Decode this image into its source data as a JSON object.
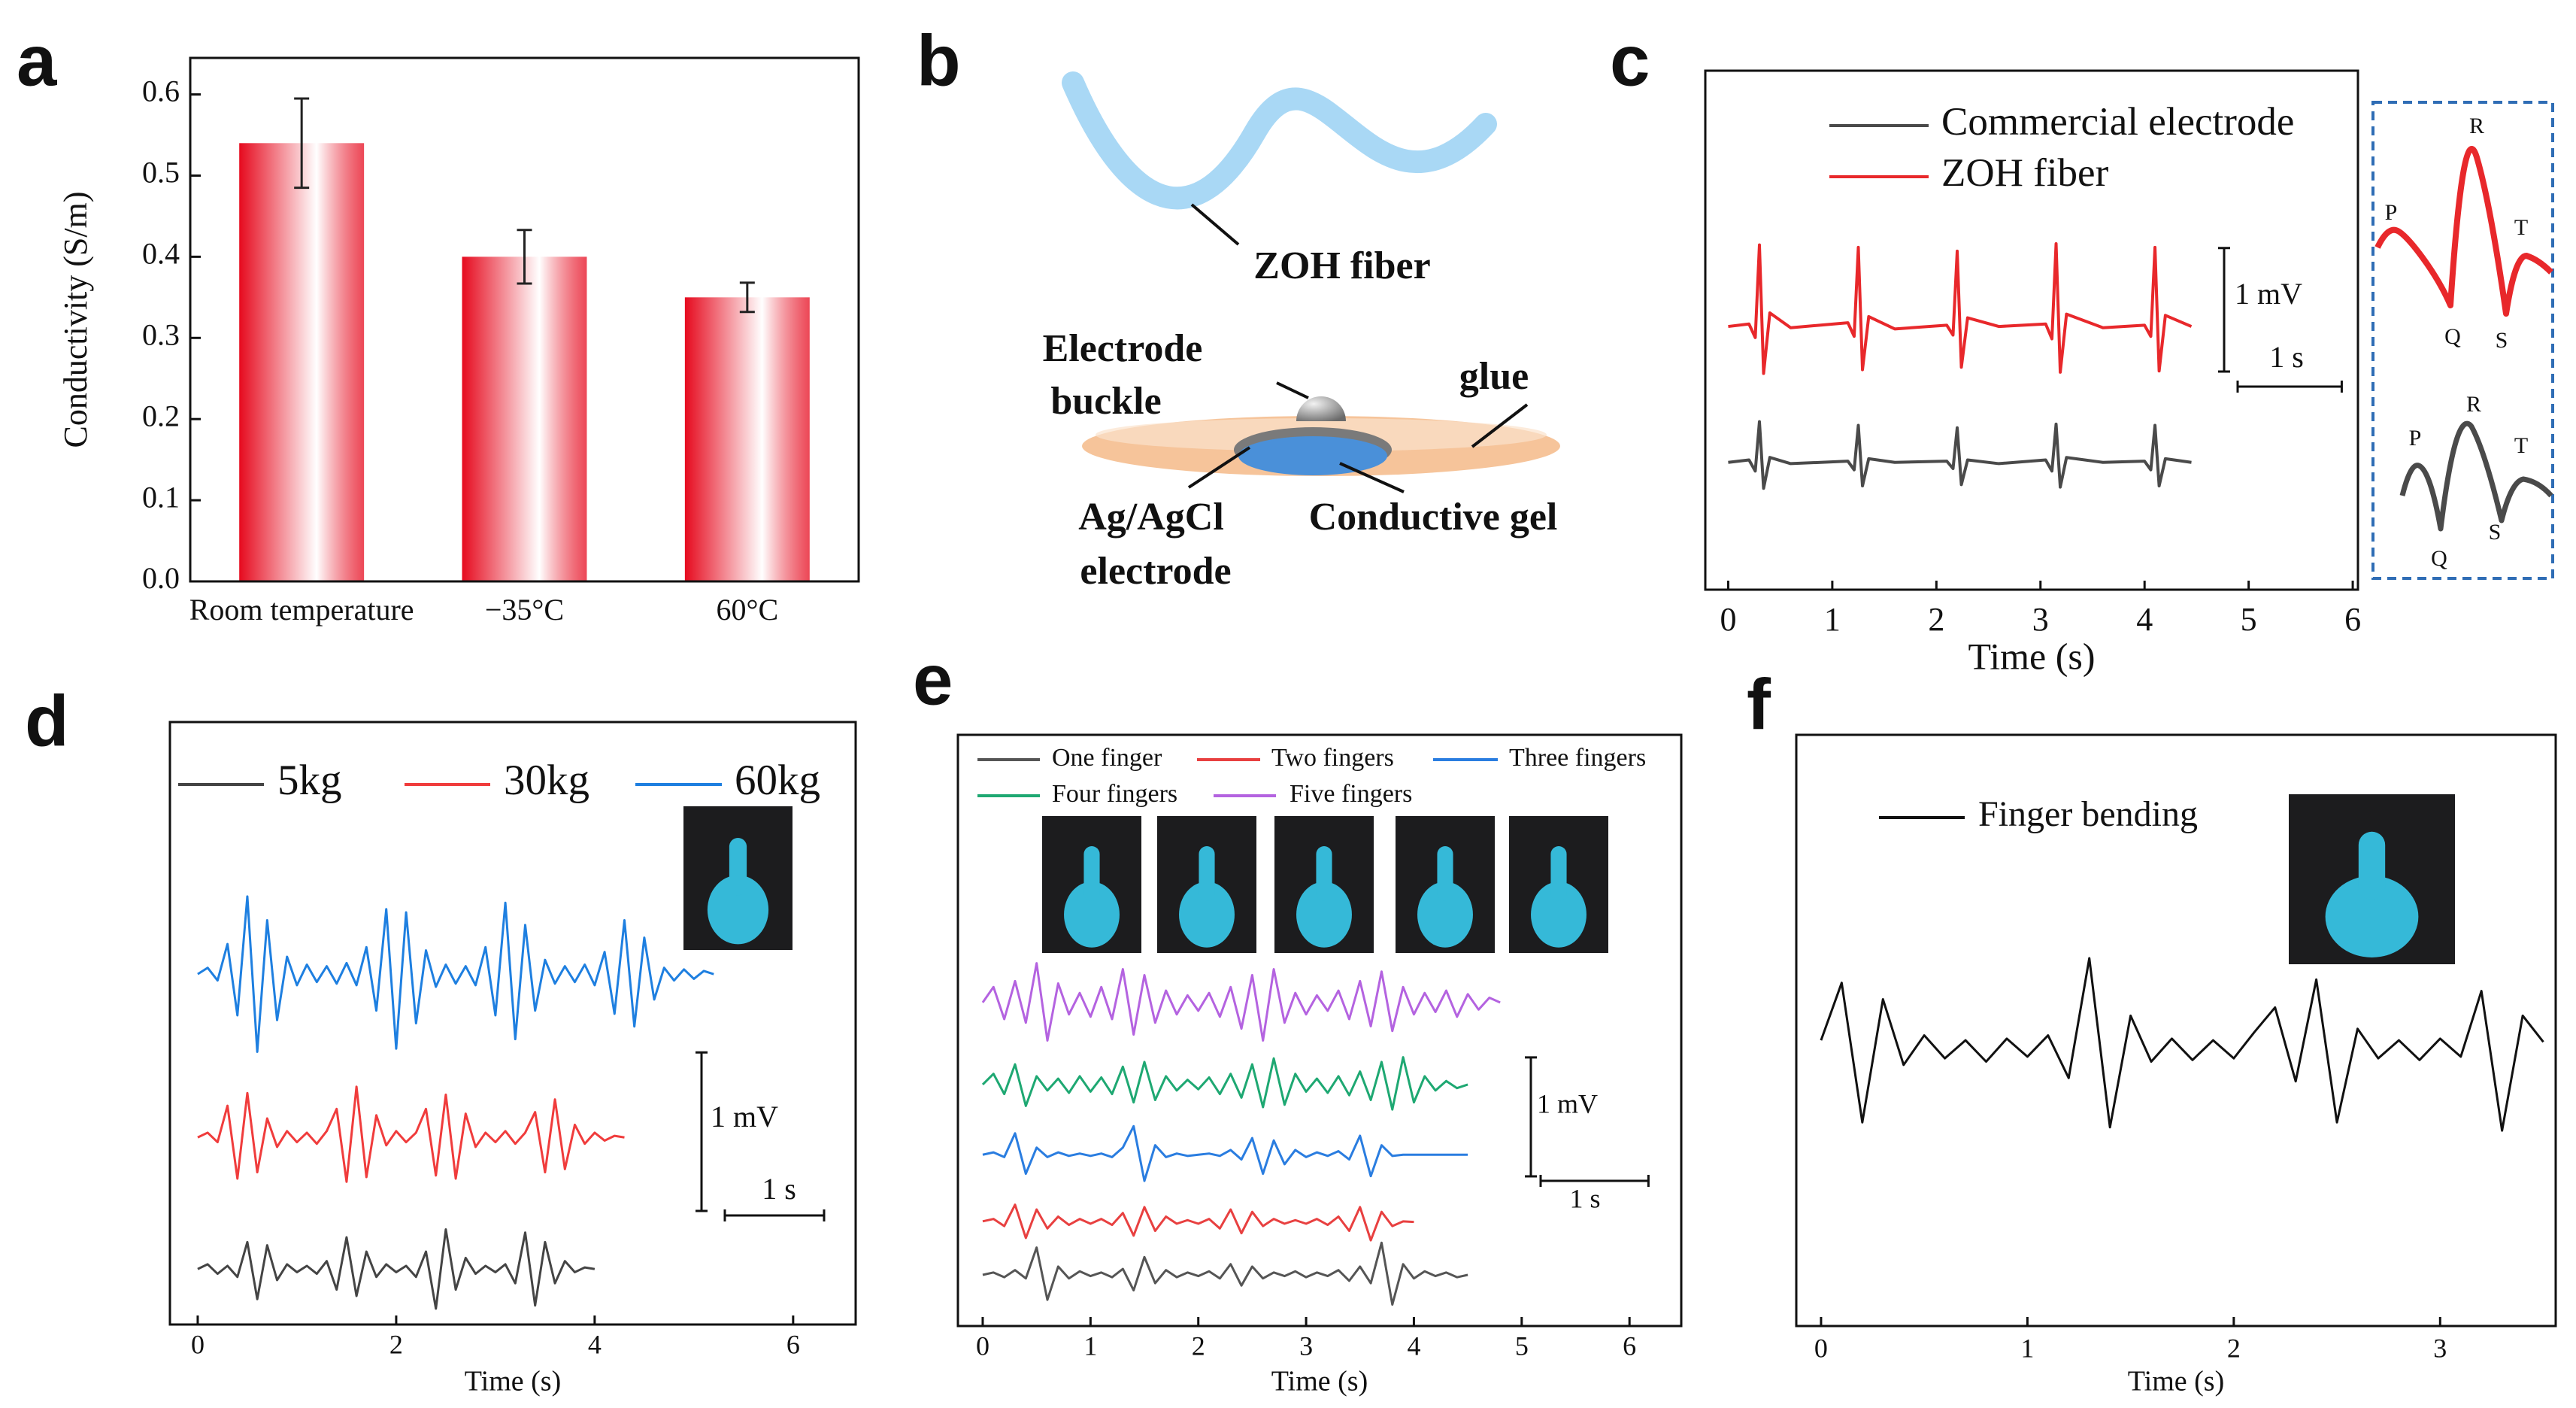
{
  "chart_data": [
    {
      "panel": "a",
      "type": "bar",
      "ylabel": "Conductivity (S/m)",
      "categories": [
        "Room temperature",
        "−35°C",
        "60°C"
      ],
      "values": [
        0.54,
        0.4,
        0.35
      ],
      "errors": [
        0.055,
        0.033,
        0.018
      ],
      "color": "#e60a1e",
      "ylim": [
        0,
        0.645
      ],
      "yticks": [
        {
          "value": 0,
          "label": "0.0"
        },
        0.1,
        0.2,
        0.3,
        0.4,
        0.5,
        0.6
      ]
    },
    {
      "panel": "c",
      "type": "line",
      "xlabel": "Time (s)",
      "x": [
        0,
        0.2,
        0.26,
        0.3,
        0.34,
        0.4,
        0.6,
        1.15,
        1.21,
        1.25,
        1.29,
        1.35,
        1.6,
        2.1,
        2.16,
        2.2,
        2.24,
        2.3,
        2.6,
        3.05,
        3.11,
        3.15,
        3.19,
        3.25,
        3.6,
        4.0,
        4.06,
        4.1,
        4.14,
        4.2,
        4.45
      ],
      "xlim": [
        -0.22,
        6.05
      ],
      "xticks": [
        0,
        1,
        2,
        3,
        4,
        5,
        6
      ],
      "ylim": [
        0,
        4.2
      ],
      "series": [
        {
          "name": "Commercial electrode",
          "color": "#4a4a4a",
          "values": [
            1.03,
            1.05,
            0.96,
            1.36,
            0.82,
            1.07,
            1.02,
            1.04,
            0.97,
            1.33,
            0.84,
            1.06,
            1.03,
            1.04,
            0.98,
            1.31,
            0.85,
            1.05,
            1.02,
            1.05,
            0.96,
            1.34,
            0.83,
            1.07,
            1.03,
            1.04,
            0.97,
            1.33,
            0.84,
            1.06,
            1.03
          ]
        },
        {
          "name": "ZOH fiber",
          "color": "#e8282b",
          "values": [
            2.13,
            2.15,
            2.04,
            2.79,
            1.75,
            2.24,
            2.12,
            2.16,
            2.05,
            2.77,
            1.78,
            2.21,
            2.11,
            2.14,
            2.06,
            2.74,
            1.8,
            2.2,
            2.13,
            2.15,
            2.03,
            2.8,
            1.76,
            2.23,
            2.12,
            2.14,
            2.05,
            2.77,
            1.77,
            2.22,
            2.13
          ]
        }
      ],
      "scale_bar": {
        "y_value": 1,
        "y_label": "1 mV",
        "x_value": 1,
        "x_label": "1 s"
      },
      "inset": {
        "labels": [
          "P",
          "Q",
          "R",
          "S",
          "T"
        ]
      }
    },
    {
      "panel": "d",
      "type": "line",
      "xlabel": "Time (s)",
      "x": [
        0,
        0.1,
        0.2,
        0.3,
        0.4,
        0.5,
        0.6,
        0.7,
        0.8,
        0.9,
        1.0,
        1.1,
        1.2,
        1.3,
        1.4,
        1.5,
        1.6,
        1.7,
        1.8,
        1.9,
        2.0,
        2.1,
        2.2,
        2.3,
        2.4,
        2.5,
        2.6,
        2.7,
        2.8,
        2.9,
        3.0,
        3.1,
        3.2,
        3.3,
        3.4,
        3.5,
        3.6,
        3.7,
        3.8,
        3.9,
        4.0,
        4.1,
        4.2,
        4.3,
        4.4,
        4.5,
        4.6,
        4.7,
        4.8,
        4.9,
        5.0,
        5.1,
        5.2
      ],
      "xlim": [
        -0.28,
        6.63
      ],
      "xticks": [
        0,
        2,
        4,
        6
      ],
      "ylim": [
        0,
        3.8
      ],
      "series": [
        {
          "name": "5kg",
          "color": "#444444",
          "values": [
            0.35,
            0.38,
            0.32,
            0.37,
            0.3,
            0.52,
            0.16,
            0.5,
            0.28,
            0.38,
            0.33,
            0.37,
            0.32,
            0.4,
            0.22,
            0.55,
            0.18,
            0.46,
            0.3,
            0.38,
            0.33,
            0.37,
            0.3,
            0.46,
            0.1,
            0.6,
            0.22,
            0.42,
            0.32,
            0.37,
            0.33,
            0.38,
            0.26,
            0.58,
            0.12,
            0.52,
            0.26,
            0.4,
            0.33,
            0.36,
            0.35,
            null,
            null,
            null,
            null,
            null,
            null,
            null,
            null,
            null,
            null,
            null,
            null
          ]
        },
        {
          "name": "30kg",
          "color": "#f03c3c",
          "values": [
            1.18,
            1.21,
            1.15,
            1.38,
            0.92,
            1.46,
            0.96,
            1.3,
            1.12,
            1.22,
            1.15,
            1.21,
            1.14,
            1.22,
            1.36,
            0.9,
            1.5,
            0.93,
            1.32,
            1.13,
            1.22,
            1.15,
            1.21,
            1.36,
            0.94,
            1.45,
            0.92,
            1.33,
            1.12,
            1.21,
            1.15,
            1.22,
            1.14,
            1.21,
            1.34,
            0.96,
            1.42,
            0.98,
            1.26,
            1.14,
            1.21,
            1.16,
            1.19,
            1.18,
            null,
            null,
            null,
            null,
            null,
            null,
            null,
            null,
            null
          ]
        },
        {
          "name": "60kg",
          "color": "#1e7fe0",
          "values": [
            2.21,
            2.25,
            2.17,
            2.4,
            1.95,
            2.7,
            1.72,
            2.55,
            1.92,
            2.32,
            2.14,
            2.27,
            2.16,
            2.26,
            2.15,
            2.28,
            2.14,
            2.38,
            1.98,
            2.62,
            1.74,
            2.6,
            1.9,
            2.36,
            2.13,
            2.27,
            2.15,
            2.26,
            2.14,
            2.38,
            1.95,
            2.66,
            1.8,
            2.52,
            1.98,
            2.3,
            2.15,
            2.26,
            2.16,
            2.27,
            2.14,
            2.35,
            1.96,
            2.55,
            1.88,
            2.44,
            2.05,
            2.25,
            2.17,
            2.24,
            2.18,
            2.23,
            2.21
          ]
        }
      ],
      "scale_bar": {
        "y_value": 1,
        "y_label": "1 mV",
        "x_value": 1,
        "x_label": "1 s"
      }
    },
    {
      "panel": "e",
      "type": "line",
      "xlabel": "Time (s)",
      "x": [
        0,
        0.1,
        0.2,
        0.3,
        0.4,
        0.5,
        0.6,
        0.7,
        0.8,
        0.9,
        1.0,
        1.1,
        1.2,
        1.3,
        1.4,
        1.5,
        1.6,
        1.7,
        1.8,
        1.9,
        2.0,
        2.1,
        2.2,
        2.3,
        2.4,
        2.5,
        2.6,
        2.7,
        2.8,
        2.9,
        3.0,
        3.1,
        3.2,
        3.3,
        3.4,
        3.5,
        3.6,
        3.7,
        3.8,
        3.9,
        4.0,
        4.1,
        4.2,
        4.3,
        4.4,
        4.5,
        4.6,
        4.7,
        4.8
      ],
      "xlim": [
        -0.23,
        6.48
      ],
      "xticks": [
        0,
        1,
        2,
        3,
        4,
        5,
        6
      ],
      "ylim": [
        0,
        4.97
      ],
      "series": [
        {
          "name": "One finger",
          "color": "#555555",
          "values": [
            0.43,
            0.45,
            0.41,
            0.47,
            0.4,
            0.66,
            0.22,
            0.5,
            0.4,
            0.46,
            0.42,
            0.45,
            0.41,
            0.48,
            0.3,
            0.58,
            0.36,
            0.47,
            0.41,
            0.45,
            0.42,
            0.46,
            0.4,
            0.52,
            0.34,
            0.5,
            0.4,
            0.45,
            0.42,
            0.46,
            0.41,
            0.45,
            0.42,
            0.47,
            0.38,
            0.5,
            0.36,
            0.7,
            0.18,
            0.52,
            0.4,
            0.46,
            0.42,
            0.45,
            0.41,
            0.43,
            null,
            null,
            null
          ]
        },
        {
          "name": "Two fingers",
          "color": "#e84040",
          "values": [
            0.88,
            0.9,
            0.84,
            1.02,
            0.74,
            0.98,
            0.82,
            0.92,
            0.85,
            0.9,
            0.86,
            0.9,
            0.85,
            0.95,
            0.76,
            1.0,
            0.8,
            0.92,
            0.86,
            0.89,
            0.86,
            0.9,
            0.82,
            0.98,
            0.78,
            0.96,
            0.84,
            0.9,
            0.86,
            0.89,
            0.86,
            0.9,
            0.85,
            0.92,
            0.8,
            1.0,
            0.72,
            0.96,
            0.84,
            0.88,
            0.875,
            null,
            null,
            null,
            null,
            null,
            null,
            null,
            null
          ]
        },
        {
          "name": "Three fingers",
          "color": "#2a7de0",
          "values": [
            1.44,
            1.46,
            1.42,
            1.62,
            1.28,
            1.5,
            1.42,
            1.46,
            1.43,
            1.45,
            1.43,
            1.45,
            1.42,
            1.5,
            1.68,
            1.22,
            1.52,
            1.42,
            1.45,
            1.43,
            1.44,
            1.45,
            1.43,
            1.48,
            1.4,
            1.58,
            1.28,
            1.56,
            1.36,
            1.48,
            1.42,
            1.46,
            1.43,
            1.47,
            1.4,
            1.6,
            1.26,
            1.52,
            1.43,
            1.44,
            1.44,
            1.44,
            1.44,
            1.44,
            1.44,
            1.44,
            null,
            null,
            null
          ]
        },
        {
          "name": "Four fingers",
          "color": "#1ea872",
          "values": [
            2.03,
            2.12,
            1.95,
            2.2,
            1.85,
            2.1,
            1.98,
            2.08,
            1.96,
            2.1,
            1.97,
            2.09,
            1.95,
            2.18,
            1.88,
            2.22,
            1.9,
            2.1,
            1.98,
            2.07,
            1.99,
            2.09,
            1.95,
            2.12,
            1.92,
            2.2,
            1.84,
            2.25,
            1.86,
            2.12,
            1.97,
            2.08,
            1.96,
            2.1,
            1.94,
            2.14,
            1.9,
            2.22,
            1.82,
            2.26,
            1.88,
            2.1,
            1.98,
            2.06,
            2.0,
            2.03,
            null,
            null,
            null
          ]
        },
        {
          "name": "Five fingers",
          "color": "#b463e0",
          "values": [
            2.72,
            2.85,
            2.58,
            2.9,
            2.55,
            3.05,
            2.4,
            2.88,
            2.62,
            2.8,
            2.6,
            2.85,
            2.58,
            3.0,
            2.45,
            2.95,
            2.55,
            2.82,
            2.62,
            2.78,
            2.65,
            2.8,
            2.6,
            2.85,
            2.5,
            2.95,
            2.4,
            3.0,
            2.55,
            2.8,
            2.62,
            2.78,
            2.65,
            2.82,
            2.58,
            2.9,
            2.52,
            2.98,
            2.48,
            2.85,
            2.62,
            2.8,
            2.64,
            2.82,
            2.6,
            2.79,
            2.66,
            2.76,
            2.72
          ]
        }
      ],
      "scale_bar": {
        "y_value": 1,
        "y_label": "1 mV",
        "x_value": 1,
        "x_label": "1 s"
      }
    },
    {
      "panel": "f",
      "type": "line",
      "xlabel": "Time (s)",
      "x": [
        0,
        0.1,
        0.2,
        0.3,
        0.4,
        0.5,
        0.6,
        0.7,
        0.8,
        0.9,
        1.0,
        1.1,
        1.2,
        1.3,
        1.4,
        1.5,
        1.6,
        1.7,
        1.8,
        1.9,
        2.0,
        2.1,
        2.2,
        2.3,
        2.4,
        2.5,
        2.6,
        2.7,
        2.8,
        2.9,
        3.0,
        3.1,
        3.2,
        3.3,
        3.4,
        3.5
      ],
      "xlim": [
        -0.12,
        3.56
      ],
      "xticks": [
        0,
        1,
        2,
        3
      ],
      "ylim": [
        -1.69,
        1.91
      ],
      "series": [
        {
          "name": "Finger bending",
          "color": "#111111",
          "values": [
            0.05,
            0.4,
            -0.45,
            0.3,
            -0.1,
            0.08,
            -0.06,
            0.05,
            -0.08,
            0.06,
            -0.05,
            0.08,
            -0.18,
            0.55,
            -0.48,
            0.2,
            -0.08,
            0.06,
            -0.07,
            0.05,
            -0.06,
            0.1,
            0.25,
            -0.2,
            0.42,
            -0.45,
            0.12,
            -0.06,
            0.05,
            -0.07,
            0.06,
            -0.05,
            0.35,
            -0.5,
            0.2,
            0.04
          ]
        }
      ]
    }
  ],
  "diagram": {
    "panel": "b",
    "fiber_label": "ZOH fiber",
    "buckle_label": [
      "Electrode",
      "buckle"
    ],
    "glue_label": "glue",
    "electrode_label": [
      "Ag/AgCl",
      "electrode"
    ],
    "gel_label": "Conductive gel"
  }
}
